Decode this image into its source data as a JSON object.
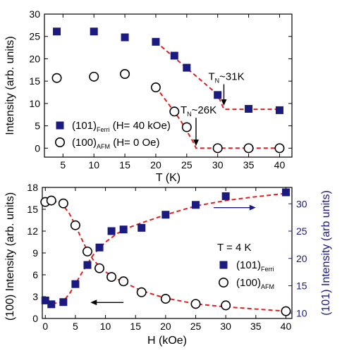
{
  "chart_data": [
    {
      "type": "scatter",
      "xlabel": "T (K)",
      "ylabel": "Intensity (arb. units)",
      "xlim": [
        2,
        42
      ],
      "ylim": [
        -2,
        30
      ],
      "xticks": [
        5,
        10,
        15,
        20,
        25,
        30,
        35,
        40
      ],
      "yticks": [
        0,
        5,
        10,
        15,
        20,
        25,
        30
      ],
      "grid": false,
      "legend_position": "bottom-left",
      "series": [
        {
          "name": "(101)Ferri (H= 40 kOe)",
          "legend_main": "(101)",
          "legend_sub": "Ferri",
          "legend_tail": " (H= 40 kOe)",
          "marker": "filled-square",
          "color": "#1a1a80",
          "x": [
            4,
            10,
            15,
            20,
            23,
            25,
            30,
            35,
            40
          ],
          "y": [
            26.1,
            26.1,
            24.8,
            23.8,
            20.7,
            18.0,
            11.9,
            8.8,
            8.5
          ]
        },
        {
          "name": "(100)AFM (H= 0 Oe)",
          "legend_main": "(100)",
          "legend_sub": "AFM",
          "legend_tail": " (H= 0 Oe)",
          "marker": "open-circle",
          "color": "#000000",
          "x": [
            4,
            10,
            15,
            20,
            23,
            25,
            30,
            35,
            40
          ],
          "y": [
            15.7,
            16.0,
            16.6,
            13.6,
            8.2,
            4.7,
            0.0,
            0.0,
            0.0
          ]
        }
      ],
      "fit_lines": [
        {
          "color": "#e02020",
          "x": [
            20,
            30,
            31,
            40
          ],
          "y": [
            23.8,
            12.0,
            8.7,
            8.7
          ]
        },
        {
          "color": "#e02020",
          "x": [
            20,
            22,
            24,
            26,
            26.5,
            40
          ],
          "y": [
            13.7,
            10.0,
            6.2,
            1.5,
            0.0,
            0.0
          ]
        }
      ],
      "annotations": [
        {
          "text": "T",
          "sub": "N",
          "tail": "~31K",
          "arrow_x": 31,
          "arrow_from_y": 14.3,
          "arrow_to_y": 9.5
        },
        {
          "text": "T",
          "sub": "N",
          "tail": "~26K",
          "arrow_x": 26.5,
          "arrow_from_y": 6.8,
          "arrow_to_y": 0.5
        }
      ]
    },
    {
      "type": "scatter",
      "xlabel": "H (kOe)",
      "ylabel": "(100) Intensity (arb. units)",
      "ylabel_right": "(101) Intensity (arb units)",
      "ylabel_right_color": "#1a1a80",
      "xlim": [
        -0.5,
        41
      ],
      "ylim": [
        0,
        18
      ],
      "ylim_right": [
        9,
        33
      ],
      "xticks": [
        0,
        5,
        10,
        15,
        20,
        25,
        30,
        35,
        40
      ],
      "yticks": [
        0,
        3,
        6,
        9,
        12,
        15,
        18
      ],
      "yticks_right": [
        10,
        15,
        20,
        25,
        30
      ],
      "grid": false,
      "legend_position": "center-right",
      "legend_title": "T = 4 K",
      "series": [
        {
          "name": "(101)Ferri",
          "legend_main": "(101)",
          "legend_sub": "Ferri",
          "axis": "right",
          "marker": "filled-square",
          "color": "#1a1a80",
          "x": [
            0,
            1,
            3,
            5,
            7,
            9,
            11,
            13,
            16,
            20,
            25,
            30,
            40
          ],
          "y": [
            12.3,
            11.6,
            12.0,
            15.3,
            18.8,
            22.0,
            25.0,
            25.3,
            25.6,
            28.0,
            29.8,
            31.4,
            32.1
          ]
        },
        {
          "name": "(100)AFM",
          "legend_main": "(100)",
          "legend_sub": "AFM",
          "axis": "left",
          "marker": "open-circle",
          "color": "#000000",
          "x": [
            0,
            1,
            3,
            5,
            7,
            9,
            11,
            13,
            16,
            20,
            25,
            30,
            40
          ],
          "y": [
            16.0,
            16.2,
            15.8,
            12.8,
            9.2,
            6.9,
            5.7,
            5.1,
            3.6,
            2.7,
            2.0,
            1.8,
            1.0
          ]
        }
      ],
      "fit_lines": [
        {
          "color": "#e02020",
          "axis": "right",
          "x": [
            0,
            2,
            3,
            4,
            5,
            6,
            7,
            8,
            10,
            12,
            14,
            16,
            20,
            25,
            30,
            35,
            40
          ],
          "y": [
            11.9,
            11.8,
            12.2,
            13.5,
            15.3,
            17.2,
            19.0,
            20.7,
            23.0,
            24.6,
            25.7,
            26.5,
            28.0,
            29.6,
            30.6,
            31.3,
            31.9
          ]
        },
        {
          "color": "#e02020",
          "axis": "left",
          "x": [
            0,
            1,
            2,
            3,
            4,
            5,
            6,
            7,
            8,
            10,
            12,
            14,
            16,
            20,
            25,
            30,
            35,
            40
          ],
          "y": [
            16.0,
            16.1,
            16.0,
            15.5,
            14.4,
            12.8,
            11.0,
            9.3,
            8.0,
            6.4,
            5.4,
            4.6,
            3.8,
            2.8,
            2.0,
            1.6,
            1.3,
            1.0
          ]
        }
      ],
      "arrows": [
        {
          "direction": "left",
          "axis": "left",
          "x_from": 13,
          "x_to": 7.5,
          "y": 2.2
        },
        {
          "direction": "right",
          "axis": "right",
          "x_from": 28,
          "x_to": 35,
          "y": 29.3,
          "color": "#1a1a80"
        }
      ]
    }
  ]
}
